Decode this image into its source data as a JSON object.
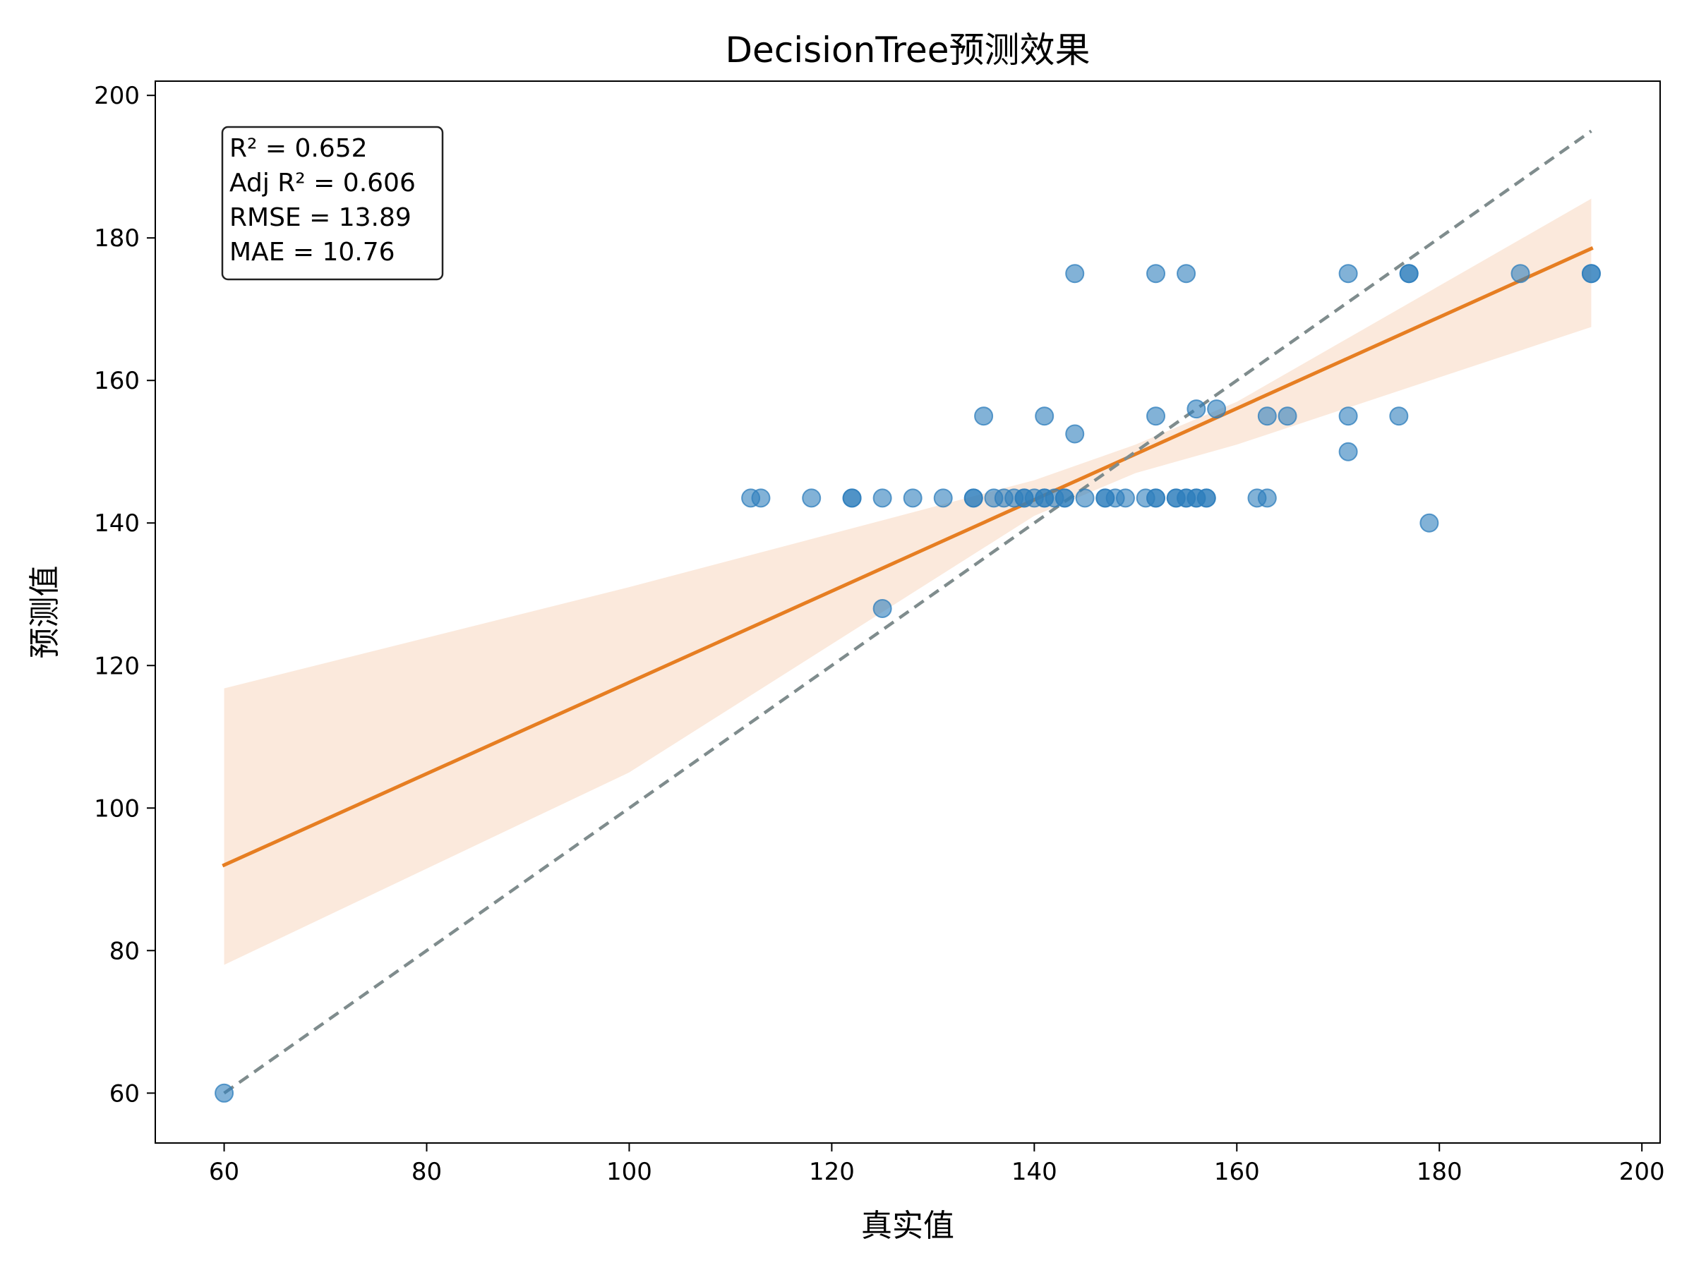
{
  "chart_data": {
    "type": "scatter",
    "title": "DecisionTree预测效果",
    "xlabel": "真实值",
    "ylabel": "预测值",
    "xlim": [
      53.2,
      201.8
    ],
    "ylim": [
      53.0,
      202.0
    ],
    "xticks": [
      60,
      80,
      100,
      120,
      140,
      160,
      180,
      200
    ],
    "yticks": [
      60,
      80,
      100,
      120,
      140,
      160,
      180,
      200
    ],
    "grid": false,
    "stats": [
      "R² = 0.652",
      "Adj R² = 0.606",
      "RMSE = 13.89",
      "MAE = 10.76"
    ],
    "stats_box_position": "top-left",
    "colors": {
      "points": "#2e7ebc",
      "fit_line": "#e67e22",
      "confidence_band": "#fbe9dc",
      "identity_line": "#7f8c8d"
    },
    "series": [
      {
        "kind": "points",
        "x": [
          60,
          112,
          113,
          118,
          122,
          122,
          125,
          125,
          128,
          131,
          134,
          134,
          135,
          136,
          137,
          138,
          139,
          139,
          140,
          141,
          141,
          141,
          142,
          143,
          143,
          144,
          144,
          145,
          147,
          147,
          148,
          149,
          151,
          152,
          152,
          152,
          152,
          154,
          154,
          155,
          155,
          155,
          156,
          156,
          156,
          157,
          157,
          158,
          162,
          163,
          163,
          165,
          171,
          171,
          171,
          176,
          177,
          177,
          179,
          188,
          195,
          195
        ],
        "y": [
          60,
          143.5,
          143.5,
          143.5,
          143.5,
          143.5,
          143.5,
          128,
          143.5,
          143.5,
          143.5,
          143.5,
          155,
          143.5,
          143.5,
          143.5,
          143.5,
          143.5,
          143.5,
          143.5,
          143.5,
          155,
          143.5,
          143.5,
          143.5,
          175,
          152.5,
          143.5,
          143.5,
          143.5,
          143.5,
          143.5,
          143.5,
          143.5,
          143.5,
          155,
          175,
          143.5,
          143.5,
          143.5,
          143.5,
          175,
          143.5,
          143.5,
          156,
          143.5,
          143.5,
          156,
          143.5,
          143.5,
          155,
          155,
          175,
          155,
          150,
          155,
          175,
          175,
          140,
          175,
          175,
          175
        ]
      },
      {
        "kind": "fit_line",
        "x": [
          60,
          195
        ],
        "y": [
          92.0,
          178.5
        ]
      },
      {
        "kind": "confidence_band",
        "x": [
          60,
          100,
          140,
          150,
          160,
          195
        ],
        "lower": [
          78,
          105,
          141,
          147,
          151,
          167.5
        ],
        "upper": [
          116.8,
          131,
          146,
          151,
          157,
          185.5
        ]
      },
      {
        "kind": "identity_line",
        "x": [
          60,
          195
        ],
        "y": [
          60,
          195
        ]
      }
    ]
  }
}
